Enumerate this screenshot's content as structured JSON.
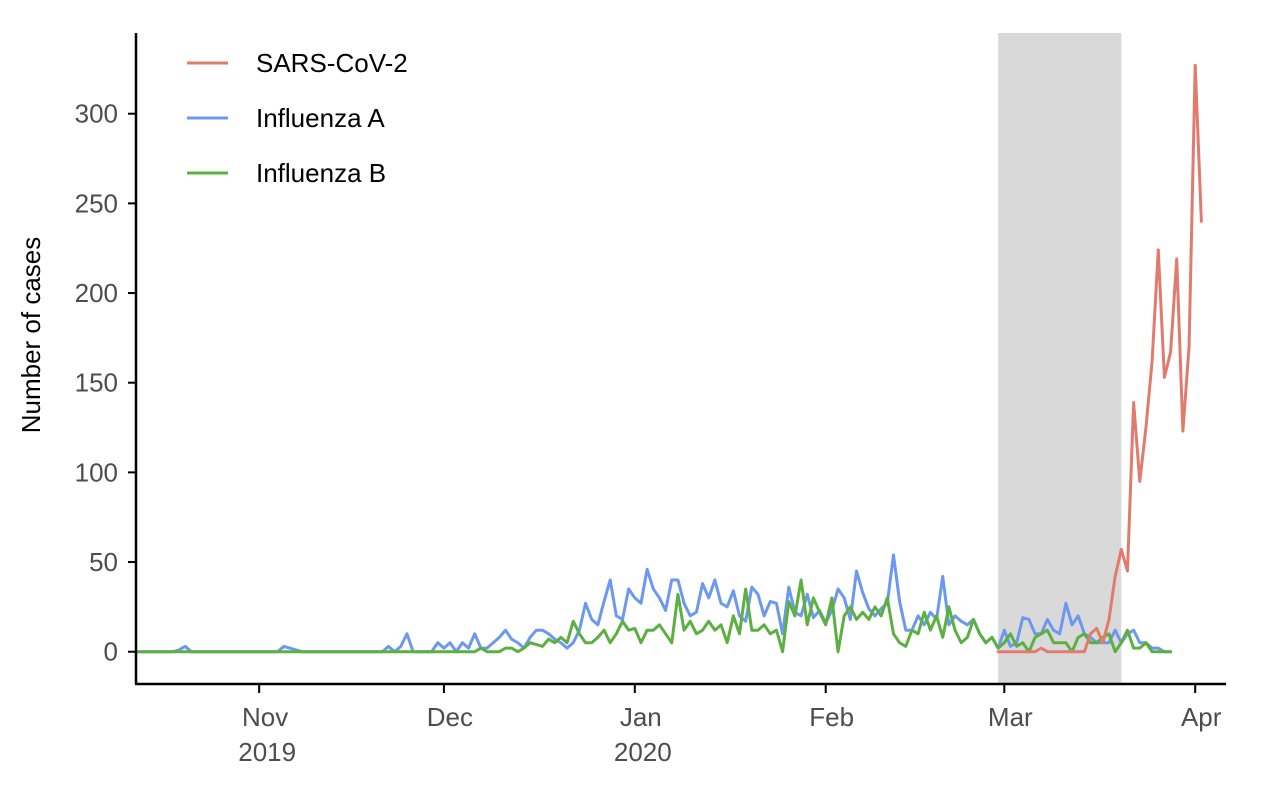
{
  "chart_data": {
    "type": "line",
    "title": "",
    "xlabel": "",
    "ylabel": "Number of cases",
    "ylim": [
      -18,
      345
    ],
    "xlim": [
      "2019-10-12",
      "2020-04-06"
    ],
    "yticks": [
      0,
      50,
      100,
      150,
      200,
      250,
      300
    ],
    "xticks": [
      {
        "date": "2019-11-01",
        "label": "Nov",
        "sublabel": "2019"
      },
      {
        "date": "2019-12-01",
        "label": "Dec",
        "sublabel": ""
      },
      {
        "date": "2020-01-01",
        "label": "Jan",
        "sublabel": "2020"
      },
      {
        "date": "2020-02-01",
        "label": "Feb",
        "sublabel": ""
      },
      {
        "date": "2020-03-01",
        "label": "Mar",
        "sublabel": ""
      },
      {
        "date": "2020-04-01",
        "label": "Apr",
        "sublabel": ""
      }
    ],
    "shaded_region": {
      "start": "2020-02-29",
      "end": "2020-03-20",
      "color": "#d9d9d9"
    },
    "grid": false,
    "legend_position": "top-left",
    "series": [
      {
        "name": "SARS-CoV-2",
        "color": "#e07b6e",
        "x_start": "2020-02-29",
        "values": [
          0,
          0,
          0,
          0,
          0,
          0,
          0,
          2,
          0,
          0,
          0,
          0,
          0,
          0,
          0,
          10,
          13,
          5,
          18,
          42,
          57,
          45,
          139,
          95,
          125,
          162,
          224,
          153,
          167,
          219,
          123,
          170,
          327,
          240
        ]
      },
      {
        "name": "Influenza A",
        "color": "#6d98f0",
        "x_start": "2019-10-12",
        "values": [
          0,
          0,
          0,
          0,
          0,
          0,
          0,
          1,
          3,
          0,
          0,
          0,
          0,
          0,
          0,
          0,
          0,
          0,
          0,
          0,
          0,
          0,
          0,
          0,
          3,
          2,
          1,
          0,
          0,
          0,
          0,
          0,
          0,
          0,
          0,
          0,
          0,
          0,
          0,
          0,
          0,
          3,
          0,
          3,
          10,
          0,
          0,
          0,
          0,
          5,
          2,
          5,
          0,
          5,
          2,
          10,
          2,
          2,
          5,
          8,
          12,
          7,
          5,
          2,
          8,
          12,
          12,
          10,
          7,
          5,
          2,
          5,
          12,
          27,
          18,
          15,
          28,
          40,
          20,
          18,
          35,
          30,
          27,
          46,
          35,
          30,
          23,
          40,
          40,
          27,
          20,
          22,
          38,
          30,
          40,
          27,
          25,
          34,
          20,
          17,
          36,
          32,
          20,
          28,
          27,
          10,
          36,
          22,
          20,
          32,
          19,
          23,
          16,
          23,
          35,
          30,
          18,
          45,
          33,
          24,
          20,
          24,
          27,
          54,
          28,
          12,
          12,
          20,
          15,
          22,
          18,
          42,
          15,
          20,
          17,
          15,
          18,
          10,
          5,
          8,
          2,
          12,
          3,
          5,
          19,
          18,
          10,
          10,
          18,
          12,
          10,
          27,
          15,
          20,
          10,
          8,
          5,
          5,
          5,
          12,
          5,
          10,
          12,
          5,
          5,
          2,
          2,
          0,
          0
        ]
      },
      {
        "name": "Influenza B",
        "color": "#5bb040",
        "x_start": "2019-10-12",
        "values": [
          0,
          0,
          0,
          0,
          0,
          0,
          0,
          0,
          0,
          0,
          0,
          0,
          0,
          0,
          0,
          0,
          0,
          0,
          0,
          0,
          0,
          0,
          0,
          0,
          0,
          0,
          0,
          0,
          0,
          0,
          0,
          0,
          0,
          0,
          0,
          0,
          0,
          0,
          0,
          0,
          0,
          0,
          0,
          0,
          0,
          0,
          0,
          0,
          0,
          0,
          0,
          0,
          0,
          0,
          0,
          0,
          2,
          0,
          0,
          0,
          2,
          2,
          0,
          2,
          5,
          4,
          3,
          7,
          5,
          8,
          5,
          17,
          10,
          5,
          5,
          8,
          12,
          5,
          10,
          17,
          12,
          13,
          5,
          12,
          12,
          15,
          10,
          5,
          32,
          12,
          17,
          10,
          12,
          17,
          12,
          15,
          5,
          20,
          10,
          35,
          12,
          12,
          15,
          10,
          12,
          0,
          28,
          20,
          40,
          15,
          30,
          22,
          15,
          30,
          0,
          20,
          25,
          18,
          22,
          18,
          25,
          20,
          30,
          10,
          5,
          3,
          12,
          10,
          22,
          12,
          20,
          8,
          25,
          12,
          5,
          8,
          18,
          10,
          5,
          8,
          2,
          5,
          10,
          3,
          5,
          0,
          8,
          10,
          12,
          5,
          5,
          5,
          0,
          8,
          10,
          5,
          5,
          8,
          10,
          0,
          5,
          12,
          2,
          2,
          5,
          0,
          0,
          0,
          0
        ]
      }
    ]
  }
}
